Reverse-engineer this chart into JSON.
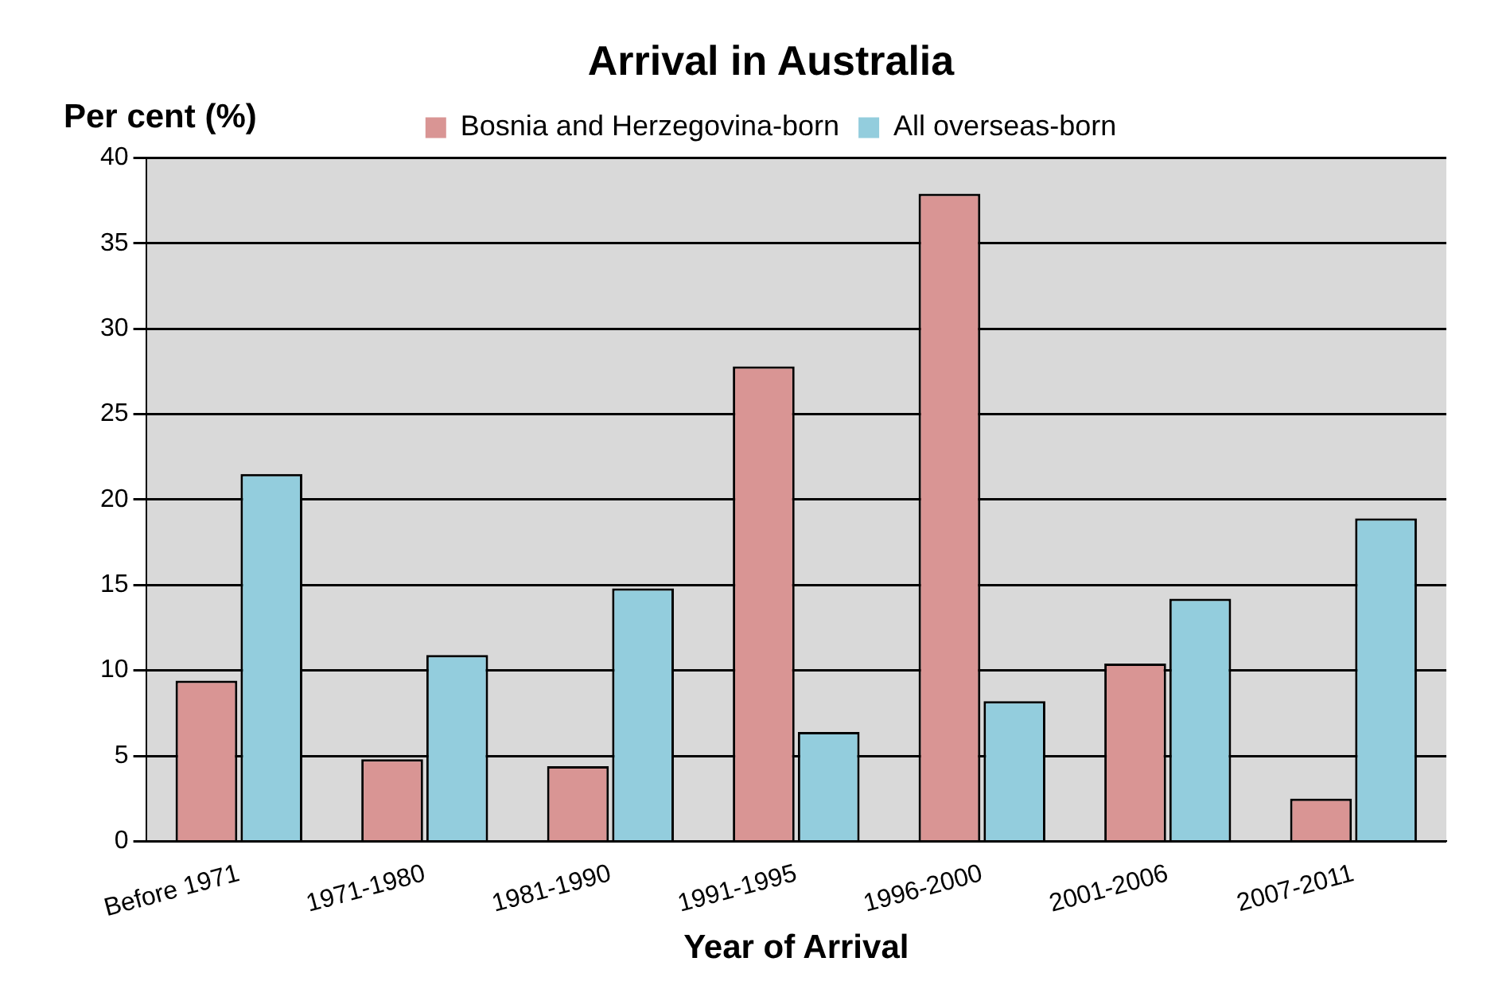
{
  "chart_data": {
    "type": "bar",
    "title": "Arrival in Australia",
    "ylabel": "Per cent (%)",
    "xlabel": "Year of Arrival",
    "categories": [
      "Before 1971",
      "1971-1980",
      "1981-1990",
      "1991-1995",
      "1996-2000",
      "2001-2006",
      "2007-2011"
    ],
    "series": [
      {
        "name": "Bosnia and Herzegovina-born",
        "color": "#d99594",
        "values": [
          9.4,
          4.8,
          4.4,
          27.8,
          37.9,
          10.4,
          2.5
        ]
      },
      {
        "name": "All overseas-born",
        "color": "#93cddd",
        "values": [
          21.5,
          10.9,
          14.8,
          6.4,
          8.2,
          14.2,
          18.9
        ]
      }
    ],
    "ylim": [
      0,
      40
    ],
    "yticks": [
      0,
      5,
      10,
      15,
      20,
      25,
      30,
      35,
      40
    ],
    "grid": "y",
    "legend": "top"
  }
}
